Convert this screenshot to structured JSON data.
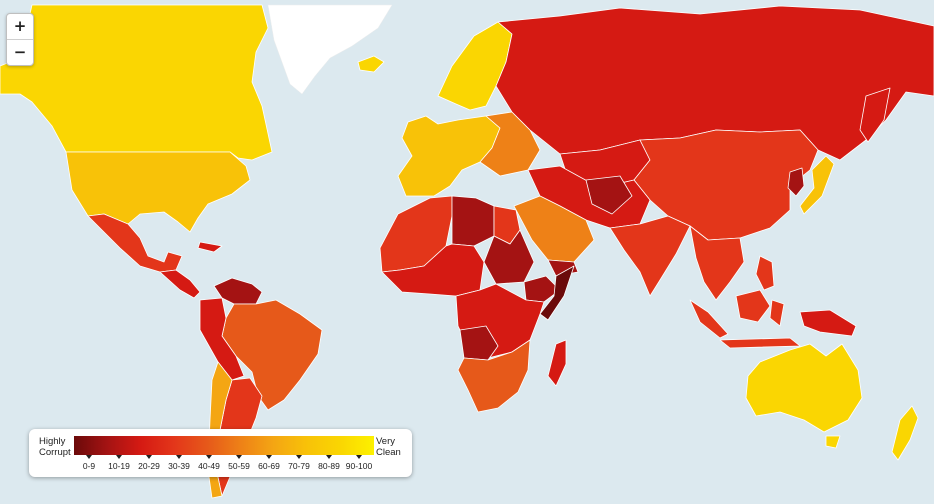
{
  "map": {
    "title": "",
    "background_color": "#dce9ef",
    "border_color": "#ffffff"
  },
  "zoom": {
    "in_label": "+",
    "out_label": "−"
  },
  "legend": {
    "left_label_line1": "Highly",
    "left_label_line2": "Corrupt",
    "right_label_line1": "Very",
    "right_label_line2": "Clean",
    "bins": [
      {
        "label": "0-9",
        "color": "#6b0a0a"
      },
      {
        "label": "10-19",
        "color": "#a41313"
      },
      {
        "label": "20-29",
        "color": "#d51a13"
      },
      {
        "label": "30-39",
        "color": "#e3361a"
      },
      {
        "label": "40-49",
        "color": "#e6591a"
      },
      {
        "label": "50-59",
        "color": "#ee8117"
      },
      {
        "label": "60-69",
        "color": "#f4a613"
      },
      {
        "label": "70-79",
        "color": "#f8c208"
      },
      {
        "label": "80-89",
        "color": "#fad602"
      },
      {
        "label": "90-100",
        "color": "#fdf100"
      }
    ]
  },
  "regions": [
    {
      "name": "Canada",
      "bin": "80-89"
    },
    {
      "name": "United States",
      "bin": "70-79"
    },
    {
      "name": "Mexico",
      "bin": "30-39"
    },
    {
      "name": "Central America",
      "bin": "20-29"
    },
    {
      "name": "Venezuela",
      "bin": "10-19"
    },
    {
      "name": "Brazil",
      "bin": "40-49"
    },
    {
      "name": "Argentina",
      "bin": "30-39"
    },
    {
      "name": "Chile",
      "bin": "60-69"
    },
    {
      "name": "Greenland",
      "bin": "none"
    },
    {
      "name": "Western Europe",
      "bin": "70-79"
    },
    {
      "name": "Nordic countries",
      "bin": "80-89"
    },
    {
      "name": "Russia",
      "bin": "20-29"
    },
    {
      "name": "China",
      "bin": "30-39"
    },
    {
      "name": "India",
      "bin": "30-39"
    },
    {
      "name": "Japan",
      "bin": "70-79"
    },
    {
      "name": "Australia",
      "bin": "80-89"
    },
    {
      "name": "New Zealand",
      "bin": "80-89"
    },
    {
      "name": "North Africa",
      "bin": "30-39"
    },
    {
      "name": "Libya",
      "bin": "10-19"
    },
    {
      "name": "Saudi Arabia",
      "bin": "50-59"
    },
    {
      "name": "Sudan",
      "bin": "10-19"
    },
    {
      "name": "Central Africa",
      "bin": "20-29"
    },
    {
      "name": "Somalia",
      "bin": "0-9"
    },
    {
      "name": "Southern Africa",
      "bin": "40-49"
    },
    {
      "name": "Indonesia",
      "bin": "30-39"
    },
    {
      "name": "Madagascar",
      "bin": "20-29"
    }
  ]
}
